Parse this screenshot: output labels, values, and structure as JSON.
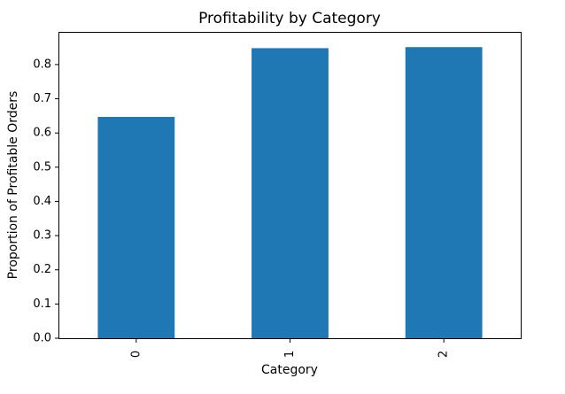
{
  "chart_data": {
    "type": "bar",
    "title": "Profitability by Category",
    "xlabel": "Category",
    "ylabel": "Proportion of Profitable Orders",
    "categories": [
      "0",
      "1",
      "2"
    ],
    "values": [
      0.647,
      0.848,
      0.851
    ],
    "ylim": [
      0,
      0.893
    ],
    "yticks": [
      "0.0",
      "0.1",
      "0.2",
      "0.3",
      "0.4",
      "0.5",
      "0.6",
      "0.7",
      "0.8"
    ],
    "bar_color": "#1f77b4",
    "grid": false,
    "legend": "none"
  }
}
